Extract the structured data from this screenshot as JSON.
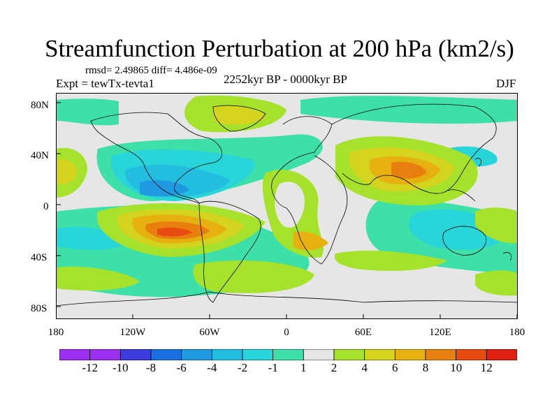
{
  "figure": {
    "title": "Streamfunction Perturbation at 200 hPa (km2/s)",
    "stats": "rmsd= 2.49865  diff= 4.486e-09",
    "experiment": "Expt = tewTx-tevta1",
    "period": "2252kyr BP - 0000kyr BP",
    "season": "DJF"
  },
  "axes": {
    "lat_ticks": [
      "80N",
      "40N",
      "0",
      "40S",
      "80S"
    ],
    "lon_ticks": [
      "180",
      "120W",
      "60W",
      "0",
      "60E",
      "120E",
      "180"
    ]
  },
  "colorbar": {
    "labels": [
      "-12",
      "-10",
      "-8",
      "-6",
      "-4",
      "-2",
      "-1",
      "1",
      "2",
      "4",
      "6",
      "8",
      "10",
      "12"
    ],
    "colors": [
      "#9b30f0",
      "#3d3cde",
      "#1a6fe0",
      "#1f9ae0",
      "#23bde0",
      "#28d5d8",
      "#3ce0a8",
      "#e6e6e6",
      "#a6e22c",
      "#d4d41e",
      "#e5b010",
      "#e88010",
      "#e84c10",
      "#e02010"
    ]
  },
  "palette": {
    "neutral": "#e6e6e6",
    "neg_1": "#3ce0a8",
    "neg_2": "#28d5d8",
    "neg_4": "#23bde0",
    "neg_6": "#1f9ae0",
    "pos_1": "#a6e22c",
    "pos_2": "#d4d41e",
    "pos_4": "#e5b010",
    "pos_6": "#e88010",
    "pos_8": "#e84c10",
    "coast": "#000000"
  }
}
